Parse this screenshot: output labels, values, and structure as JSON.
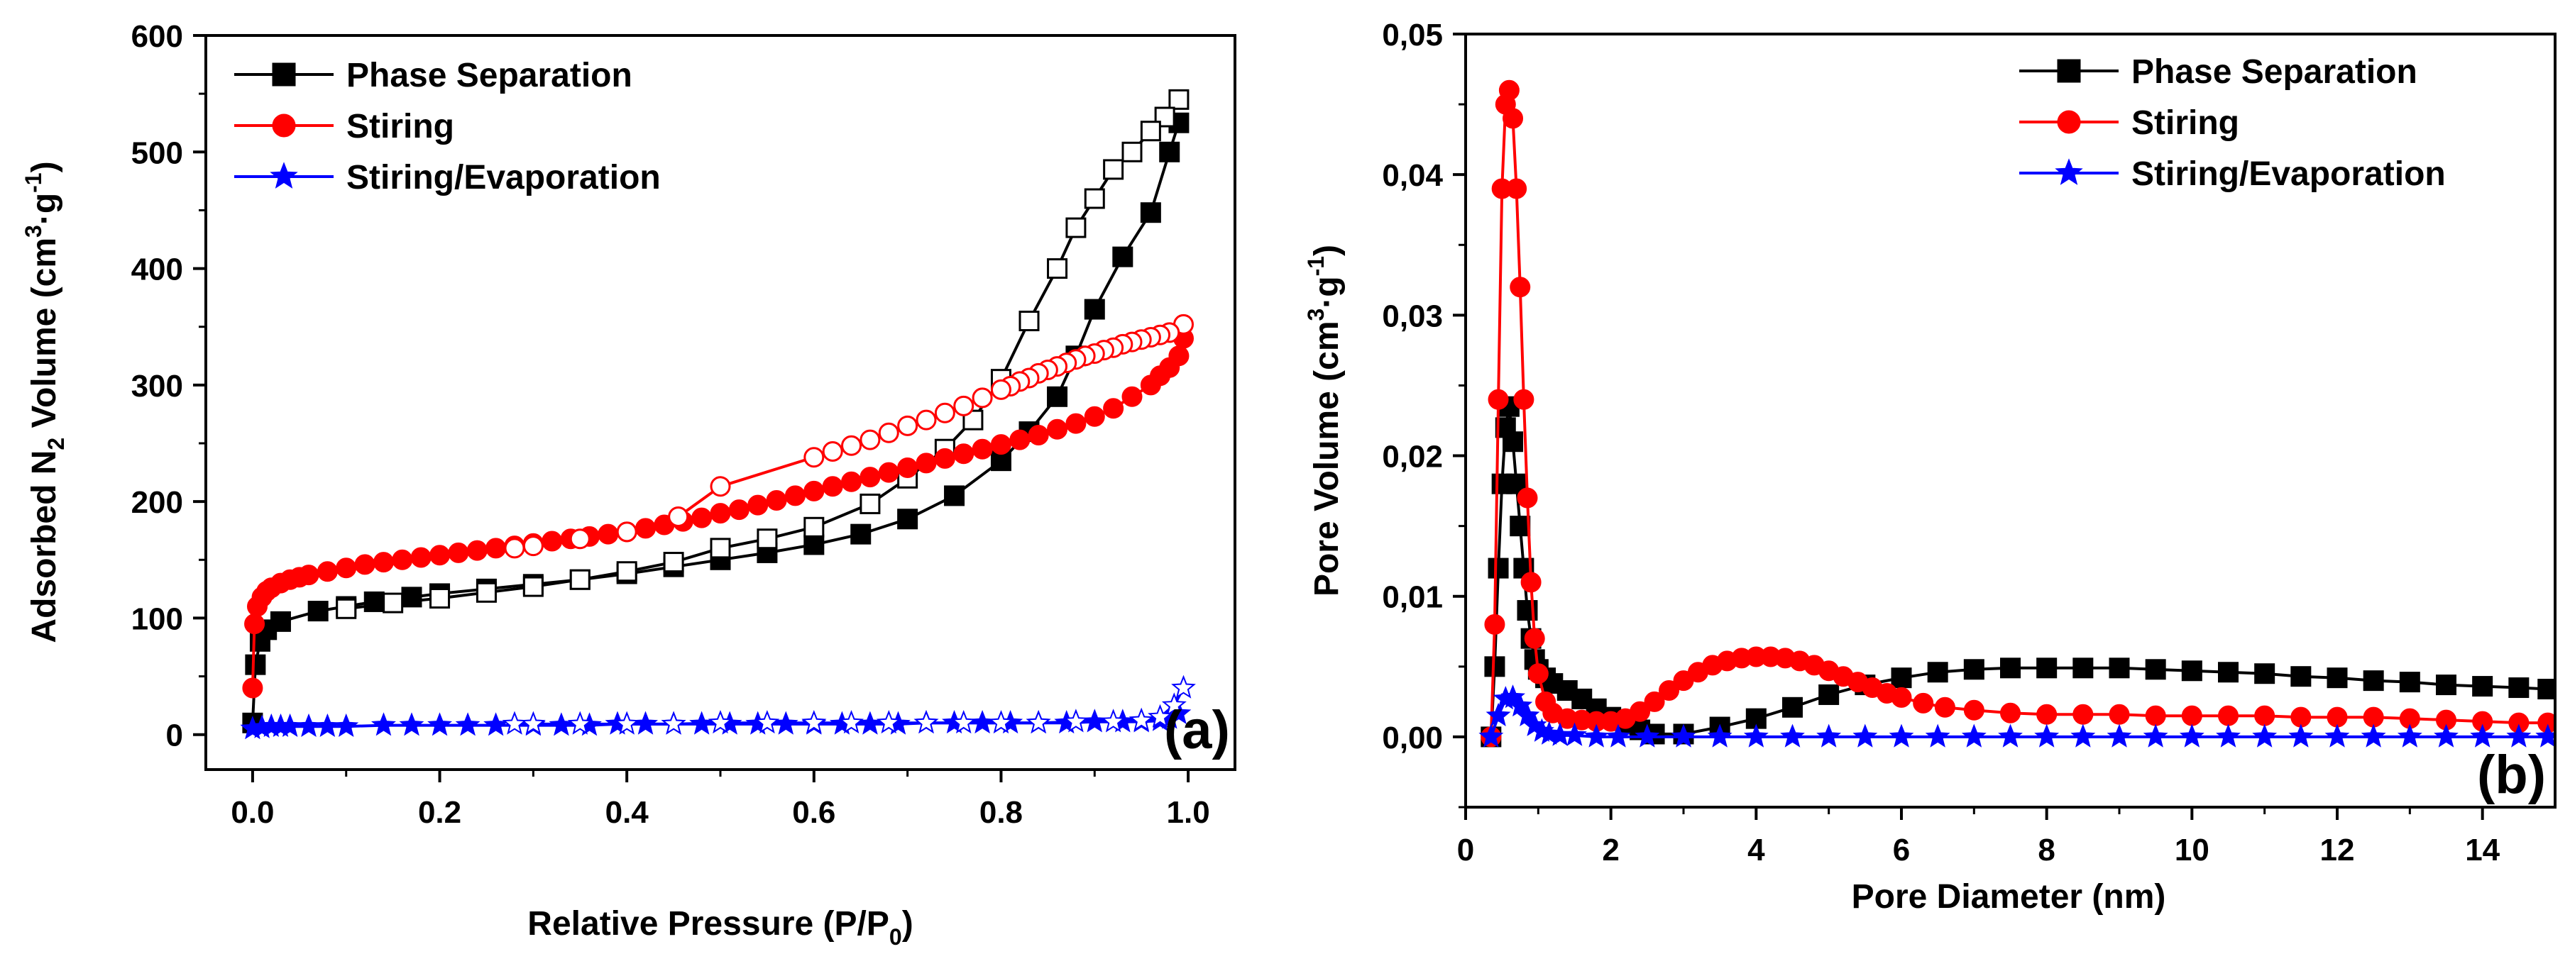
{
  "chart_data": [
    {
      "type": "line",
      "panel_label": "(a)",
      "xlabel": "Relative Pressure (P/P",
      "xlabel_sub": "0",
      "xlabel_end": ")",
      "ylabel_parts": [
        "Adsorbed N",
        "2",
        " Volume (cm",
        "3",
        "·g",
        "-1",
        ")"
      ],
      "xlim": [
        -0.05,
        1.05
      ],
      "ylim": [
        -30,
        600
      ],
      "x_ticks": [
        0.0,
        0.2,
        0.4,
        0.6,
        0.8,
        1.0
      ],
      "x_tick_labels": [
        "0.0",
        "0.2",
        "0.4",
        "0.6",
        "0.8",
        "1.0"
      ],
      "y_ticks": [
        0,
        100,
        200,
        300,
        400,
        500,
        600
      ],
      "y_tick_labels": [
        "0",
        "100",
        "200",
        "300",
        "400",
        "500",
        "600"
      ],
      "legend_position": "top-left",
      "legend": [
        "Phase Separation",
        "Stiring",
        "Stiring/Evaporation"
      ],
      "series": [
        {
          "name": "Phase Separation",
          "color": "#000000",
          "marker": "square",
          "adsorption": {
            "x": [
              0.0,
              0.003,
              0.008,
              0.015,
              0.03,
              0.07,
              0.1,
              0.13,
              0.17,
              0.2,
              0.25,
              0.3,
              0.35,
              0.4,
              0.45,
              0.5,
              0.55,
              0.6,
              0.65,
              0.7,
              0.75,
              0.8,
              0.83,
              0.86,
              0.88,
              0.9,
              0.93,
              0.96,
              0.98,
              0.99
            ],
            "y": [
              10,
              60,
              80,
              90,
              97,
              106,
              110,
              114,
              118,
              121,
              125,
              129,
              133,
              138,
              144,
              150,
              156,
              163,
              172,
              185,
              205,
              235,
              260,
              290,
              325,
              365,
              410,
              448,
              500,
              525
            ]
          },
          "desorption": {
            "x": [
              0.99,
              0.975,
              0.96,
              0.94,
              0.92,
              0.9,
              0.88,
              0.86,
              0.83,
              0.8,
              0.77,
              0.74,
              0.7,
              0.66,
              0.6,
              0.55,
              0.5,
              0.45,
              0.4,
              0.35,
              0.3,
              0.25,
              0.2,
              0.15,
              0.1
            ],
            "y": [
              545,
              530,
              518,
              500,
              485,
              460,
              435,
              400,
              355,
              305,
              270,
              245,
              220,
              198,
              178,
              168,
              160,
              148,
              140,
              133,
              127,
              122,
              117,
              113,
              108
            ]
          }
        },
        {
          "name": "Stiring",
          "color": "#ff0000",
          "marker": "circle",
          "adsorption": {
            "x": [
              0.0,
              0.002,
              0.005,
              0.01,
              0.015,
              0.02,
              0.03,
              0.04,
              0.05,
              0.06,
              0.08,
              0.1,
              0.12,
              0.14,
              0.16,
              0.18,
              0.2,
              0.22,
              0.24,
              0.26,
              0.28,
              0.3,
              0.32,
              0.34,
              0.36,
              0.38,
              0.4,
              0.42,
              0.44,
              0.46,
              0.48,
              0.5,
              0.52,
              0.54,
              0.56,
              0.58,
              0.6,
              0.62,
              0.64,
              0.66,
              0.68,
              0.7,
              0.72,
              0.74,
              0.76,
              0.78,
              0.8,
              0.82,
              0.84,
              0.86,
              0.88,
              0.9,
              0.92,
              0.94,
              0.96,
              0.97,
              0.98,
              0.99,
              0.995
            ],
            "y": [
              40,
              95,
              110,
              118,
              123,
              126,
              130,
              133,
              135,
              137,
              140,
              143,
              146,
              148,
              150,
              152,
              154,
              156,
              158,
              160,
              162,
              164,
              166,
              168,
              170,
              172,
              174,
              177,
              180,
              183,
              186,
              190,
              193,
              197,
              201,
              205,
              209,
              213,
              217,
              221,
              225,
              229,
              233,
              237,
              241,
              245,
              249,
              253,
              257,
              262,
              267,
              273,
              280,
              290,
              300,
              308,
              315,
              325,
              340
            ]
          },
          "desorption": {
            "x": [
              0.995,
              0.98,
              0.97,
              0.96,
              0.95,
              0.94,
              0.93,
              0.92,
              0.91,
              0.9,
              0.89,
              0.88,
              0.87,
              0.86,
              0.85,
              0.84,
              0.83,
              0.82,
              0.81,
              0.8,
              0.78,
              0.76,
              0.74,
              0.72,
              0.7,
              0.68,
              0.66,
              0.64,
              0.62,
              0.6,
              0.5,
              0.455,
              0.4,
              0.35,
              0.3,
              0.28
            ],
            "y": [
              352,
              345,
              343,
              341,
              339,
              337,
              335,
              332,
              330,
              327,
              325,
              322,
              319,
              316,
              313,
              310,
              306,
              303,
              299,
              296,
              289,
              282,
              276,
              270,
              265,
              259,
              253,
              248,
              243,
              238,
              213,
              187,
              174,
              168,
              162,
              160
            ]
          }
        },
        {
          "name": "Stiring/Evaporation",
          "color": "#0000ff",
          "marker": "star",
          "adsorption": {
            "x": [
              0.0,
              0.01,
              0.02,
              0.03,
              0.04,
              0.06,
              0.08,
              0.1,
              0.14,
              0.17,
              0.2,
              0.23,
              0.26,
              0.3,
              0.33,
              0.36,
              0.39,
              0.42,
              0.45,
              0.48,
              0.51,
              0.54,
              0.57,
              0.6,
              0.63,
              0.66,
              0.69,
              0.72,
              0.75,
              0.78,
              0.81,
              0.84,
              0.87,
              0.9,
              0.93,
              0.95,
              0.97,
              0.98,
              0.99
            ],
            "y": [
              5,
              6,
              7,
              7,
              7,
              7,
              7,
              7,
              8,
              8,
              8,
              8,
              8,
              8,
              8,
              8,
              9,
              9,
              9,
              9,
              9,
              9,
              9,
              9,
              9,
              9,
              9,
              10,
              10,
              10,
              10,
              10,
              10,
              11,
              11,
              11,
              12,
              14,
              18
            ]
          },
          "desorption": {
            "x": [
              0.995,
              0.985,
              0.97,
              0.95,
              0.92,
              0.88,
              0.84,
              0.8,
              0.76,
              0.72,
              0.68,
              0.64,
              0.6,
              0.55,
              0.5,
              0.45,
              0.4,
              0.35,
              0.3,
              0.28
            ],
            "y": [
              40,
              25,
              15,
              12,
              11,
              11,
              10,
              10,
              10,
              10,
              10,
              10,
              10,
              10,
              10,
              9,
              9,
              9,
              9,
              9
            ]
          }
        }
      ]
    },
    {
      "type": "line",
      "panel_label": "(b)",
      "xlabel": "Pore Diameter (nm)",
      "ylabel_parts": [
        "Pore Volume (cm",
        "3",
        "·g",
        "-1",
        ")"
      ],
      "xlim": [
        0,
        15
      ],
      "ylim": [
        -0.005,
        0.05
      ],
      "x_ticks": [
        0,
        2,
        4,
        6,
        8,
        10,
        12,
        14
      ],
      "x_tick_labels": [
        "0",
        "2",
        "4",
        "6",
        "8",
        "10",
        "12",
        "14"
      ],
      "y_ticks": [
        0.0,
        0.01,
        0.02,
        0.03,
        0.04,
        0.05
      ],
      "y_tick_labels": [
        "0,00",
        "0,01",
        "0,02",
        "0,03",
        "0,04",
        "0,05"
      ],
      "legend_position": "top-right",
      "legend": [
        "Phase Separation",
        "Stiring",
        "Stiring/Evaporation"
      ],
      "series": [
        {
          "name": "Phase Separation",
          "color": "#000000",
          "marker": "square",
          "x": [
            0.35,
            0.4,
            0.45,
            0.5,
            0.55,
            0.6,
            0.65,
            0.7,
            0.75,
            0.8,
            0.85,
            0.9,
            0.95,
            1.0,
            1.1,
            1.2,
            1.4,
            1.6,
            1.8,
            2.0,
            2.2,
            2.4,
            2.6,
            3.0,
            3.5,
            4.0,
            4.5,
            5.0,
            5.5,
            6.0,
            6.5,
            7.0,
            7.5,
            8.0,
            8.5,
            9.0,
            9.5,
            10.0,
            10.5,
            11.0,
            11.5,
            12.0,
            12.5,
            13.0,
            13.5,
            14.0,
            14.5,
            14.9
          ],
          "y": [
            0.0,
            0.005,
            0.012,
            0.018,
            0.022,
            0.0235,
            0.021,
            0.018,
            0.015,
            0.012,
            0.009,
            0.007,
            0.0055,
            0.0048,
            0.0042,
            0.0038,
            0.0033,
            0.0027,
            0.002,
            0.0014,
            0.0009,
            0.0005,
            0.0002,
            0.0002,
            0.0007,
            0.0013,
            0.0021,
            0.003,
            0.0037,
            0.0042,
            0.0046,
            0.0048,
            0.0049,
            0.0049,
            0.0049,
            0.0049,
            0.0048,
            0.0047,
            0.0046,
            0.0045,
            0.0043,
            0.0042,
            0.004,
            0.0039,
            0.0037,
            0.0036,
            0.0035,
            0.0034
          ]
        },
        {
          "name": "Stiring",
          "color": "#ff0000",
          "marker": "circle",
          "x": [
            0.35,
            0.4,
            0.45,
            0.5,
            0.55,
            0.6,
            0.65,
            0.7,
            0.75,
            0.8,
            0.85,
            0.9,
            0.95,
            1.0,
            1.1,
            1.2,
            1.4,
            1.6,
            1.8,
            2.0,
            2.2,
            2.4,
            2.6,
            2.8,
            3.0,
            3.2,
            3.4,
            3.6,
            3.8,
            4.0,
            4.2,
            4.4,
            4.6,
            4.8,
            5.0,
            5.2,
            5.4,
            5.6,
            5.8,
            6.0,
            6.3,
            6.6,
            7.0,
            7.5,
            8.0,
            8.5,
            9.0,
            9.5,
            10.0,
            10.5,
            11.0,
            11.5,
            12.0,
            12.5,
            13.0,
            13.5,
            14.0,
            14.5,
            14.9
          ],
          "y": [
            0.0,
            0.008,
            0.024,
            0.039,
            0.045,
            0.046,
            0.044,
            0.039,
            0.032,
            0.024,
            0.017,
            0.011,
            0.007,
            0.0045,
            0.0025,
            0.0017,
            0.0013,
            0.0012,
            0.0011,
            0.0011,
            0.0013,
            0.0018,
            0.0025,
            0.0033,
            0.004,
            0.0046,
            0.0051,
            0.0054,
            0.0056,
            0.0057,
            0.0057,
            0.0056,
            0.0054,
            0.0051,
            0.0047,
            0.0043,
            0.0039,
            0.0035,
            0.0031,
            0.0028,
            0.0024,
            0.0021,
            0.0019,
            0.0017,
            0.0016,
            0.0016,
            0.0016,
            0.0015,
            0.0015,
            0.0015,
            0.0015,
            0.0014,
            0.0014,
            0.0014,
            0.0013,
            0.0012,
            0.0011,
            0.001,
            0.001
          ]
        },
        {
          "name": "Stiring/Evaporation",
          "color": "#0000ff",
          "marker": "star",
          "x": [
            0.35,
            0.45,
            0.55,
            0.65,
            0.75,
            0.85,
            0.95,
            1.05,
            1.15,
            1.3,
            1.5,
            1.8,
            2.1,
            2.5,
            3.0,
            3.5,
            4.0,
            4.5,
            5.0,
            5.5,
            6.0,
            6.5,
            7.0,
            7.5,
            8.0,
            8.5,
            9.0,
            9.5,
            10.0,
            10.5,
            11.0,
            11.5,
            12.0,
            12.5,
            13.0,
            13.5,
            14.0,
            14.5,
            14.9
          ],
          "y": [
            0.0,
            0.0015,
            0.0027,
            0.0028,
            0.0022,
            0.0015,
            0.0008,
            0.0004,
            0.0002,
            0.0001,
            0.0001,
            0.0,
            0.0,
            0.0,
            0.0,
            0.0,
            0.0,
            0.0,
            0.0,
            0.0,
            0.0,
            0.0,
            0.0,
            0.0,
            0.0,
            0.0,
            0.0,
            0.0,
            0.0,
            0.0,
            0.0,
            0.0,
            0.0,
            0.0,
            0.0,
            0.0,
            0.0,
            0.0,
            0.0
          ]
        }
      ]
    }
  ]
}
